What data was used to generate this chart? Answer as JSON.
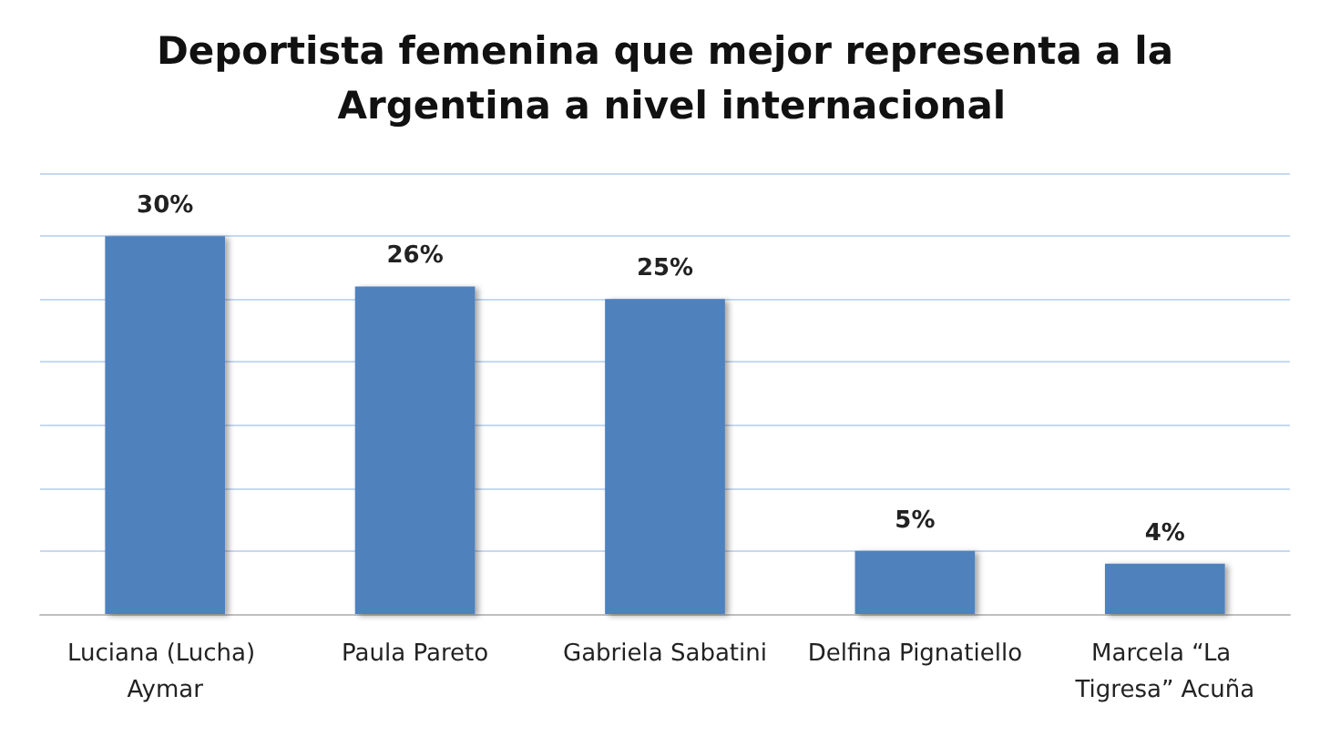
{
  "chart_data": {
    "type": "bar",
    "title": "Deportista femenina que mejor representa a la Argentina a nivel internacional",
    "categories": [
      "Luciana (Lucha) Aymar",
      "Paula Pareto",
      "Gabriela Sabatini",
      "Delfina Pignatiello",
      "Marcela “La Tigresa” Acuña"
    ],
    "values": [
      30,
      26,
      25,
      5,
      4
    ],
    "value_labels": [
      "30%",
      "26%",
      "25%",
      "5%",
      "4%"
    ],
    "color": "#4f81bd",
    "ylim": [
      0,
      35
    ],
    "yticks": [
      {
        "value": 0,
        "label": null
      },
      {
        "value": 5,
        "label": null
      },
      {
        "value": 10,
        "label": null
      },
      {
        "value": 15,
        "label": null
      },
      {
        "value": 20,
        "label": null
      },
      {
        "value": 25,
        "label": null
      },
      {
        "value": 30,
        "label": null
      },
      {
        "value": 35,
        "label": null
      }
    ],
    "grid": "y",
    "tick_labels": "x"
  }
}
